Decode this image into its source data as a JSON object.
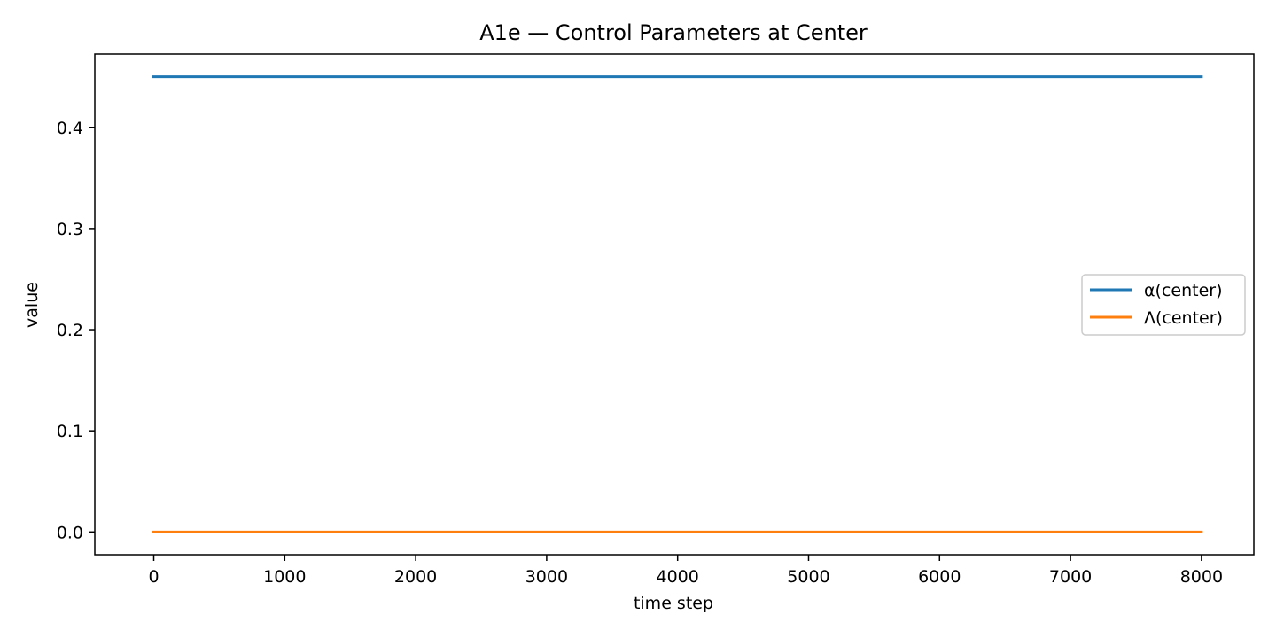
{
  "chart_data": {
    "type": "line",
    "title": "A1e — Control Parameters at Center",
    "xlabel": "time step",
    "ylabel": "value",
    "xlim": [
      -450,
      8400
    ],
    "ylim": [
      -0.0225,
      0.4725
    ],
    "x_ticks": [
      0,
      1000,
      2000,
      3000,
      4000,
      5000,
      6000,
      7000,
      8000
    ],
    "y_ticks": [
      0.0,
      0.1,
      0.2,
      0.3,
      0.4
    ],
    "x_tick_labels": [
      "0",
      "1000",
      "2000",
      "3000",
      "4000",
      "5000",
      "6000",
      "7000",
      "8000"
    ],
    "y_tick_labels": [
      "0.0",
      "0.1",
      "0.2",
      "0.3",
      "0.4"
    ],
    "grid": false,
    "legend_position": "center-right",
    "series": [
      {
        "name": "α(center)",
        "color": "#1f77b4",
        "x": [
          0,
          8000
        ],
        "y": [
          0.45,
          0.45
        ]
      },
      {
        "name": "Λ(center)",
        "color": "#ff7f0e",
        "x": [
          0,
          8000
        ],
        "y": [
          0.0,
          0.0
        ]
      }
    ]
  }
}
